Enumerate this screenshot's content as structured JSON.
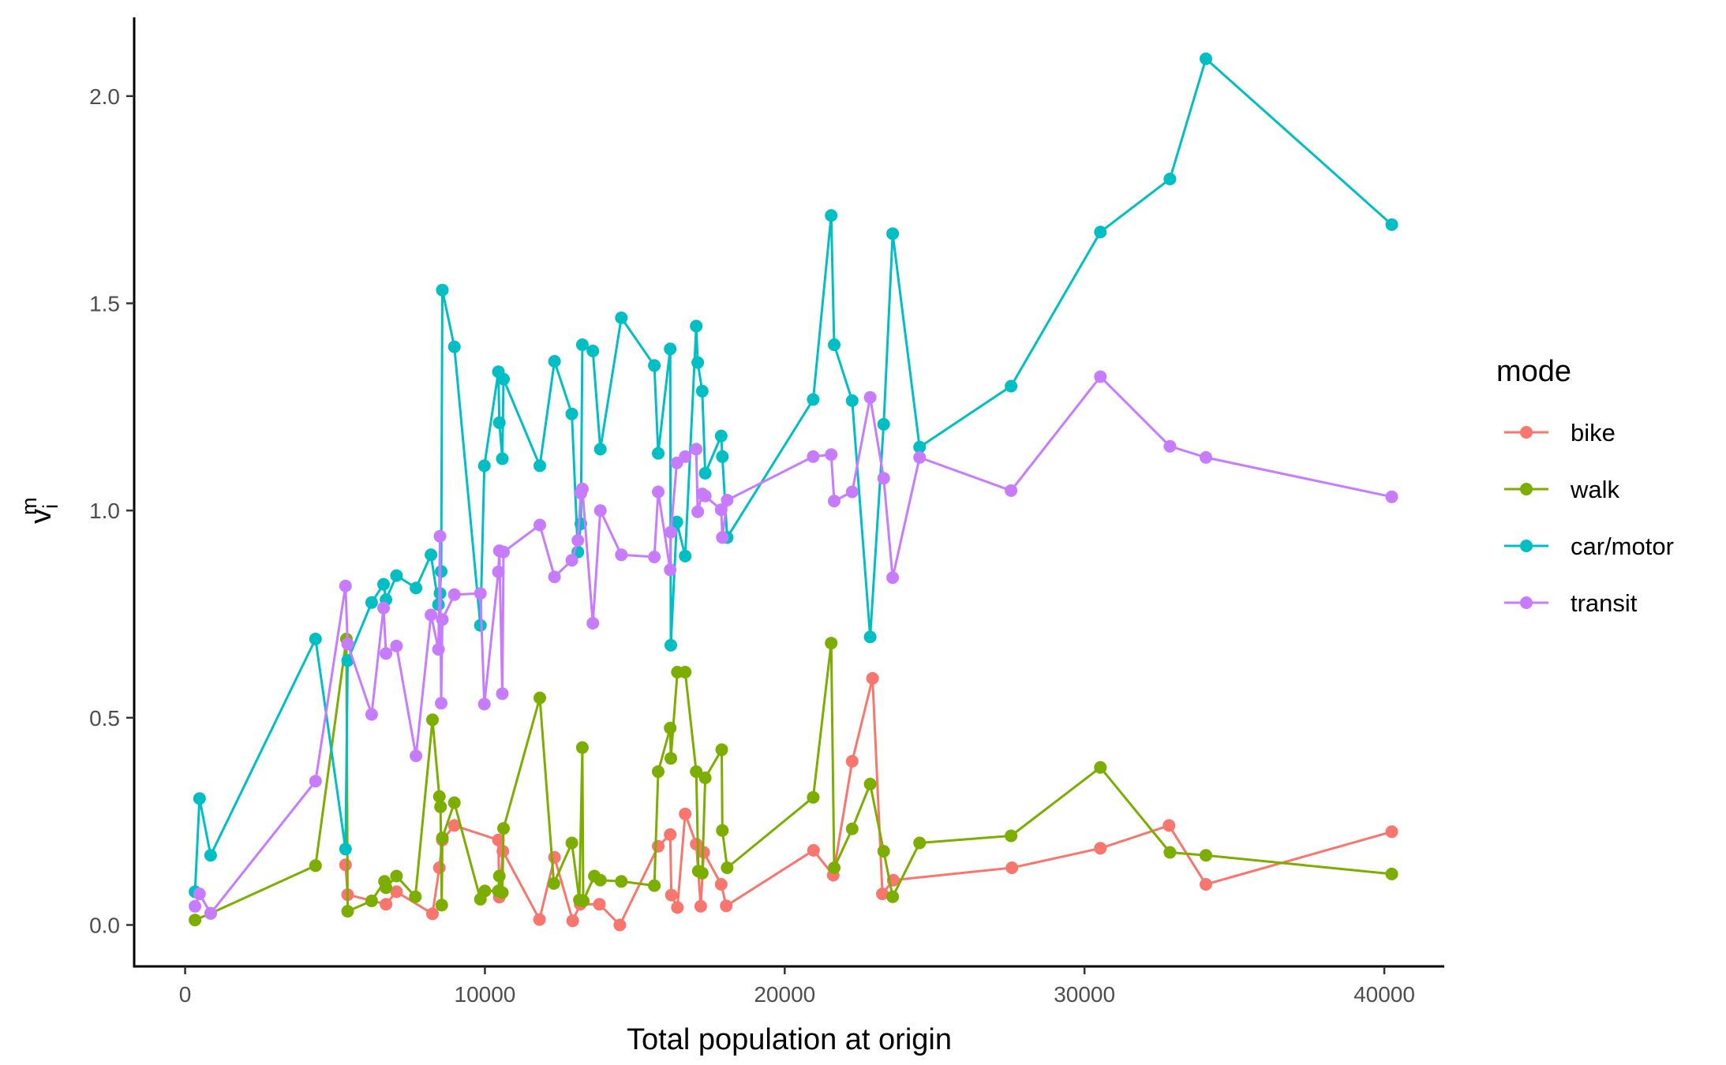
{
  "chart_data": {
    "type": "line",
    "xlabel": "Total population at origin",
    "ylabel_main": "v",
    "ylabel_sub": "i",
    "ylabel_sup": "m",
    "xlim": [
      -1700,
      42000
    ],
    "ylim": [
      -0.1,
      2.19
    ],
    "xticks": [
      0,
      10000,
      20000,
      30000,
      40000
    ],
    "xtick_labels": [
      "0",
      "10000",
      "20000",
      "30000",
      "40000"
    ],
    "yticks": [
      0.0,
      0.5,
      1.0,
      1.5,
      2.0
    ],
    "ytick_labels": [
      "0.0",
      "0.5",
      "1.0",
      "1.5",
      "2.0"
    ],
    "grid": false,
    "legend": {
      "title": "mode",
      "position": "right"
    },
    "series": [
      {
        "name": "bike",
        "color": "#F8766D",
        "points": [
          [
            5350,
            0.145
          ],
          [
            5420,
            0.073
          ],
          [
            6700,
            0.05
          ],
          [
            7050,
            0.08
          ],
          [
            8250,
            0.027
          ],
          [
            8480,
            0.138
          ],
          [
            8580,
            0.205
          ],
          [
            8980,
            0.24
          ],
          [
            10450,
            0.205
          ],
          [
            10480,
            0.067
          ],
          [
            10600,
            0.178
          ],
          [
            11820,
            0.013
          ],
          [
            12320,
            0.163
          ],
          [
            12930,
            0.01
          ],
          [
            13180,
            0.05
          ],
          [
            13820,
            0.05
          ],
          [
            14500,
            0.0
          ],
          [
            15780,
            0.19
          ],
          [
            16180,
            0.218
          ],
          [
            16220,
            0.072
          ],
          [
            16420,
            0.042
          ],
          [
            16680,
            0.268
          ],
          [
            17050,
            0.195
          ],
          [
            17200,
            0.045
          ],
          [
            17300,
            0.175
          ],
          [
            17880,
            0.098
          ],
          [
            18050,
            0.046
          ],
          [
            20960,
            0.18
          ],
          [
            21620,
            0.12
          ],
          [
            22250,
            0.395
          ],
          [
            22930,
            0.595
          ],
          [
            23260,
            0.075
          ],
          [
            23620,
            0.108
          ],
          [
            27580,
            0.138
          ],
          [
            30530,
            0.185
          ],
          [
            32820,
            0.24
          ],
          [
            34050,
            0.098
          ],
          [
            40250,
            0.225
          ]
        ]
      },
      {
        "name": "walk",
        "color": "#7CAE00",
        "points": [
          [
            330,
            0.012
          ],
          [
            850,
            0.028
          ],
          [
            4350,
            0.143
          ],
          [
            5380,
            0.69
          ],
          [
            5420,
            0.033
          ],
          [
            6220,
            0.058
          ],
          [
            6650,
            0.105
          ],
          [
            6700,
            0.09
          ],
          [
            7050,
            0.118
          ],
          [
            7680,
            0.068
          ],
          [
            8250,
            0.495
          ],
          [
            8480,
            0.31
          ],
          [
            8520,
            0.285
          ],
          [
            8560,
            0.048
          ],
          [
            8580,
            0.21
          ],
          [
            8980,
            0.295
          ],
          [
            9850,
            0.062
          ],
          [
            10000,
            0.082
          ],
          [
            10450,
            0.082
          ],
          [
            10480,
            0.118
          ],
          [
            10580,
            0.078
          ],
          [
            10620,
            0.233
          ],
          [
            11830,
            0.548
          ],
          [
            12300,
            0.1
          ],
          [
            12900,
            0.198
          ],
          [
            13150,
            0.06
          ],
          [
            13250,
            0.428
          ],
          [
            13280,
            0.058
          ],
          [
            13650,
            0.118
          ],
          [
            13850,
            0.108
          ],
          [
            14550,
            0.105
          ],
          [
            15650,
            0.095
          ],
          [
            15780,
            0.37
          ],
          [
            16180,
            0.475
          ],
          [
            16200,
            0.402
          ],
          [
            16420,
            0.61
          ],
          [
            16680,
            0.61
          ],
          [
            17050,
            0.37
          ],
          [
            17120,
            0.13
          ],
          [
            17250,
            0.125
          ],
          [
            17350,
            0.355
          ],
          [
            17900,
            0.423
          ],
          [
            17920,
            0.228
          ],
          [
            18080,
            0.138
          ],
          [
            20950,
            0.308
          ],
          [
            21550,
            0.68
          ],
          [
            21650,
            0.138
          ],
          [
            22250,
            0.232
          ],
          [
            22850,
            0.34
          ],
          [
            23300,
            0.178
          ],
          [
            23600,
            0.068
          ],
          [
            24500,
            0.198
          ],
          [
            27550,
            0.215
          ],
          [
            30530,
            0.38
          ],
          [
            32850,
            0.175
          ],
          [
            34050,
            0.168
          ],
          [
            40250,
            0.123
          ]
        ]
      },
      {
        "name": "car/motor",
        "color": "#00BFC4",
        "points": [
          [
            330,
            0.08
          ],
          [
            480,
            0.305
          ],
          [
            850,
            0.168
          ],
          [
            4350,
            0.69
          ],
          [
            5350,
            0.183
          ],
          [
            5420,
            0.638
          ],
          [
            6220,
            0.778
          ],
          [
            6620,
            0.822
          ],
          [
            6700,
            0.785
          ],
          [
            7050,
            0.843
          ],
          [
            7700,
            0.813
          ],
          [
            8200,
            0.893
          ],
          [
            8450,
            0.773
          ],
          [
            8500,
            0.8
          ],
          [
            8540,
            0.853
          ],
          [
            8580,
            1.532
          ],
          [
            8980,
            1.395
          ],
          [
            9850,
            0.723
          ],
          [
            9980,
            1.108
          ],
          [
            10450,
            1.335
          ],
          [
            10480,
            1.212
          ],
          [
            10580,
            1.125
          ],
          [
            10620,
            1.317
          ],
          [
            11830,
            1.108
          ],
          [
            12320,
            1.36
          ],
          [
            12900,
            1.233
          ],
          [
            13100,
            0.9
          ],
          [
            13200,
            0.968
          ],
          [
            13250,
            1.4
          ],
          [
            13600,
            1.385
          ],
          [
            13850,
            1.148
          ],
          [
            14550,
            1.465
          ],
          [
            15650,
            1.35
          ],
          [
            15780,
            1.138
          ],
          [
            16180,
            1.39
          ],
          [
            16200,
            0.675
          ],
          [
            16400,
            0.972
          ],
          [
            16680,
            0.89
          ],
          [
            17050,
            1.445
          ],
          [
            17100,
            1.357
          ],
          [
            17250,
            1.288
          ],
          [
            17350,
            1.09
          ],
          [
            17880,
            1.18
          ],
          [
            17920,
            1.13
          ],
          [
            18080,
            0.935
          ],
          [
            20950,
            1.268
          ],
          [
            21550,
            1.712
          ],
          [
            21650,
            1.4
          ],
          [
            22250,
            1.265
          ],
          [
            22850,
            0.695
          ],
          [
            23300,
            1.208
          ],
          [
            23600,
            1.668
          ],
          [
            24500,
            1.153
          ],
          [
            27550,
            1.3
          ],
          [
            30530,
            1.672
          ],
          [
            32850,
            1.8
          ],
          [
            34050,
            2.09
          ],
          [
            40250,
            1.69
          ]
        ]
      },
      {
        "name": "transit",
        "color": "#C77CFF",
        "points": [
          [
            330,
            0.045
          ],
          [
            480,
            0.075
          ],
          [
            850,
            0.028
          ],
          [
            4350,
            0.347
          ],
          [
            5350,
            0.818
          ],
          [
            5420,
            0.678
          ],
          [
            6220,
            0.508
          ],
          [
            6620,
            0.765
          ],
          [
            6700,
            0.655
          ],
          [
            7050,
            0.673
          ],
          [
            7700,
            0.408
          ],
          [
            8200,
            0.748
          ],
          [
            8450,
            0.665
          ],
          [
            8500,
            0.938
          ],
          [
            8540,
            0.535
          ],
          [
            8580,
            0.737
          ],
          [
            8980,
            0.797
          ],
          [
            9850,
            0.8
          ],
          [
            9980,
            0.533
          ],
          [
            10450,
            0.852
          ],
          [
            10480,
            0.903
          ],
          [
            10580,
            0.558
          ],
          [
            10620,
            0.9
          ],
          [
            11830,
            0.965
          ],
          [
            12320,
            0.84
          ],
          [
            12900,
            0.88
          ],
          [
            13100,
            0.928
          ],
          [
            13200,
            1.042
          ],
          [
            13250,
            1.052
          ],
          [
            13600,
            0.728
          ],
          [
            13850,
            1.0
          ],
          [
            14550,
            0.893
          ],
          [
            15650,
            0.888
          ],
          [
            15780,
            1.045
          ],
          [
            16180,
            0.857
          ],
          [
            16200,
            0.948
          ],
          [
            16400,
            1.115
          ],
          [
            16680,
            1.13
          ],
          [
            17050,
            1.148
          ],
          [
            17100,
            0.997
          ],
          [
            17250,
            1.04
          ],
          [
            17350,
            1.035
          ],
          [
            17880,
            1.002
          ],
          [
            17920,
            0.935
          ],
          [
            18080,
            1.025
          ],
          [
            20950,
            1.13
          ],
          [
            21550,
            1.135
          ],
          [
            21650,
            1.023
          ],
          [
            22250,
            1.045
          ],
          [
            22850,
            1.273
          ],
          [
            23300,
            1.078
          ],
          [
            23600,
            0.838
          ],
          [
            24500,
            1.128
          ],
          [
            27550,
            1.048
          ],
          [
            30530,
            1.323
          ],
          [
            32850,
            1.155
          ],
          [
            34050,
            1.128
          ],
          [
            40250,
            1.033
          ]
        ]
      }
    ]
  }
}
